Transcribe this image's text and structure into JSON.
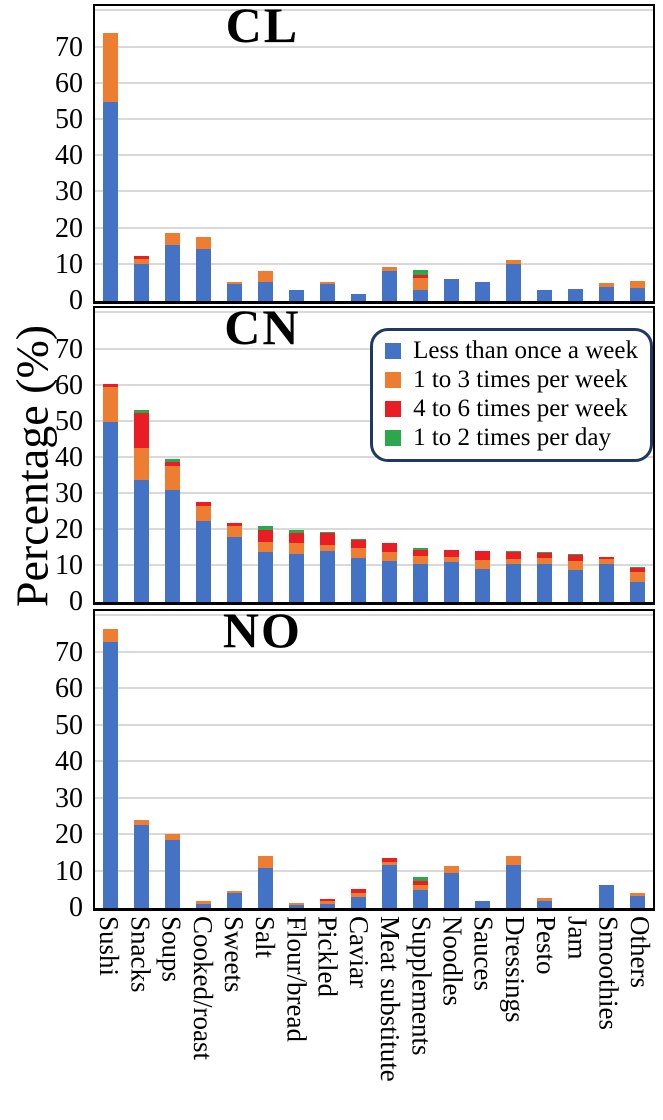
{
  "figure": {
    "ylabel": "Percentage (%)"
  },
  "legend": {
    "border_color": "#1f3864",
    "items": [
      {
        "label": "Less than once a week",
        "color": "#4472c4"
      },
      {
        "label": "1 to 3 times per week",
        "color": "#ed7d31"
      },
      {
        "label": "4 to 6 times per week",
        "color": "#ea1c24"
      },
      {
        "label": "1 to 2 times per day",
        "color": "#2ba84c"
      }
    ]
  },
  "chart_data": [
    {
      "type": "bar",
      "stacked": true,
      "title": "CL",
      "ylabel": "Percentage (%)",
      "ylim": [
        0,
        80
      ],
      "yticks": [
        0,
        10,
        20,
        30,
        40,
        50,
        60,
        70
      ],
      "grid": true,
      "legend_position": "none",
      "categories": [
        "Sushi",
        "Snacks",
        "Soups",
        "Cooked/roast",
        "Sweets",
        "Salt",
        "Flour/bread",
        "Pickled",
        "Caviar",
        "Meat substitute",
        "Supplements",
        "Noodles",
        "Sauces",
        "Dressings",
        "Pesto",
        "Jam",
        "Smoothies",
        "Others"
      ],
      "series": [
        {
          "name": "Less than once a week",
          "color": "#4472c4",
          "values": [
            55.0,
            10.2,
            15.6,
            14.4,
            4.6,
            5.3,
            3.1,
            4.7,
            2.0,
            8.3,
            3.0,
            6.1,
            5.2,
            10.2,
            3.0,
            3.2,
            3.8,
            3.5
          ]
        },
        {
          "name": "1 to 3 times per week",
          "color": "#ed7d31",
          "values": [
            19.0,
            1.4,
            3.1,
            3.4,
            0.7,
            3.1,
            0,
            0.5,
            0,
            1.2,
            3.4,
            0,
            0,
            1.2,
            0,
            0,
            1.3,
            2.0
          ]
        },
        {
          "name": "4 to 6 times per week",
          "color": "#ea1c24",
          "values": [
            0,
            0.9,
            0,
            0,
            0,
            0,
            0,
            0,
            0,
            0,
            0.9,
            0,
            0,
            0,
            0,
            0,
            0,
            0
          ]
        },
        {
          "name": "1 to 2 times per day",
          "color": "#2ba84c",
          "values": [
            0,
            0,
            0,
            0,
            0,
            0,
            0,
            0,
            0,
            0,
            1.2,
            0,
            0,
            0,
            0,
            0,
            0,
            0
          ]
        }
      ]
    },
    {
      "type": "bar",
      "stacked": true,
      "title": "CN",
      "ylabel": "Percentage (%)",
      "ylim": [
        0,
        80
      ],
      "yticks": [
        0,
        10,
        20,
        30,
        40,
        50,
        60,
        70
      ],
      "grid": true,
      "legend_position": "top-right",
      "categories": [
        "Sushi",
        "Snacks",
        "Soups",
        "Cooked/roast",
        "Sweets",
        "Salt",
        "Flour/bread",
        "Pickled",
        "Caviar",
        "Meat substitute",
        "Supplements",
        "Noodles",
        "Sauces",
        "Dressings",
        "Pesto",
        "Jam",
        "Smoothies",
        "Others"
      ],
      "series": [
        {
          "name": "Less than once a week",
          "color": "#4472c4",
          "values": [
            49.8,
            33.8,
            31.1,
            22.5,
            17.9,
            13.8,
            13.3,
            14.2,
            12.3,
            11.5,
            10.5,
            11.1,
            9.1,
            10.4,
            10.5,
            9.0,
            10.6,
            5.5
          ]
        },
        {
          "name": "1 to 3 times per week",
          "color": "#ed7d31",
          "values": [
            9.8,
            9.0,
            6.6,
            4.2,
            3.3,
            2.9,
            3.0,
            1.6,
            2.7,
            2.5,
            2.2,
            1.5,
            2.6,
            1.6,
            1.6,
            2.5,
            1.4,
            2.9
          ]
        },
        {
          "name": "4 to 6 times per week",
          "color": "#ea1c24",
          "values": [
            0.9,
            9.7,
            1.1,
            1.0,
            0.7,
            3.4,
            2.7,
            3.2,
            2.3,
            2.4,
            1.7,
            1.8,
            2.4,
            1.8,
            1.6,
            1.4,
            0.6,
            1.1
          ]
        },
        {
          "name": "1 to 2 times per day",
          "color": "#2ba84c",
          "values": [
            0,
            0.7,
            0.9,
            0,
            0,
            0.9,
            0.9,
            0.5,
            0.3,
            0,
            0.5,
            0,
            0,
            0.4,
            0.3,
            0.5,
            0,
            0.2
          ]
        }
      ]
    },
    {
      "type": "bar",
      "stacked": true,
      "title": "NO",
      "ylabel": "Percentage (%)",
      "ylim": [
        0,
        80
      ],
      "yticks": [
        0,
        10,
        20,
        30,
        40,
        50,
        60,
        70
      ],
      "grid": true,
      "legend_position": "none",
      "categories": [
        "Sushi",
        "Snacks",
        "Soups",
        "Cooked/roast",
        "Sweets",
        "Salt",
        "Flour/bread",
        "Pickled",
        "Caviar",
        "Meat substitute",
        "Supplements",
        "Noodles",
        "Sauces",
        "Dressings",
        "Pesto",
        "Jam",
        "Smoothies",
        "Others"
      ],
      "series": [
        {
          "name": "Less than once a week",
          "color": "#4472c4",
          "values": [
            73.0,
            22.9,
            18.8,
            1.2,
            4.2,
            11.1,
            0.8,
            1.0,
            2.9,
            11.8,
            5.0,
            9.7,
            1.9,
            11.8,
            1.9,
            0,
            6.4,
            3.3
          ]
        },
        {
          "name": "1 to 3 times per week",
          "color": "#ed7d31",
          "values": [
            3.5,
            1.3,
            1.4,
            0.7,
            0.6,
            3.2,
            0.5,
            0.8,
            1.2,
            0.9,
            1.4,
            1.7,
            0,
            2.6,
            0.9,
            0,
            0,
            0.9
          ]
        },
        {
          "name": "4 to 6 times per week",
          "color": "#ea1c24",
          "values": [
            0,
            0,
            0,
            0,
            0,
            0,
            0,
            0.8,
            1.0,
            0.9,
            0.9,
            0,
            0,
            0,
            0,
            0,
            0,
            0
          ]
        },
        {
          "name": "1 to 2 times per day",
          "color": "#2ba84c",
          "values": [
            0,
            0,
            0,
            0,
            0,
            0,
            0,
            0,
            0,
            0,
            1.2,
            0,
            0,
            0,
            0,
            0,
            0,
            0
          ]
        }
      ]
    }
  ]
}
